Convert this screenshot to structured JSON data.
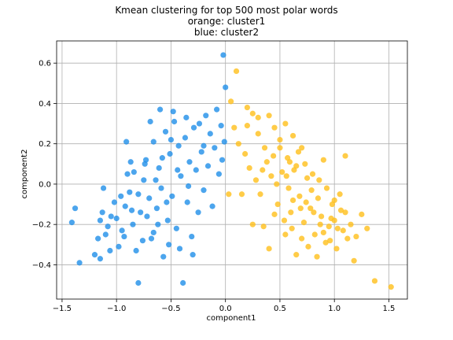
{
  "chart_data": {
    "type": "scatter",
    "title_lines": [
      "Kmean clustering for top 500 most polar words",
      "orange: cluster1",
      "blue: cluster2"
    ],
    "xlabel": "component1",
    "ylabel": "component2",
    "xlim": [
      -1.55,
      1.67
    ],
    "ylim": [
      -0.57,
      0.71
    ],
    "xticks": [
      -1.5,
      -1.0,
      -0.5,
      0.0,
      0.5,
      1.0,
      1.5
    ],
    "xtick_labels": [
      "−1.5",
      "−1.0",
      "−0.5",
      "0.0",
      "0.5",
      "1.0",
      "1.5"
    ],
    "yticks": [
      -0.4,
      -0.2,
      0.0,
      0.2,
      0.4,
      0.6
    ],
    "ytick_labels": [
      "−0.4",
      "−0.2",
      "0.0",
      "0.2",
      "0.4",
      "0.6"
    ],
    "grid": true,
    "series": [
      {
        "color": "#1f8ee8",
        "points": [
          [
            -1.41,
            -0.19
          ],
          [
            -1.38,
            -0.12
          ],
          [
            -1.34,
            -0.39
          ],
          [
            -1.2,
            -0.35
          ],
          [
            -1.15,
            -0.37
          ],
          [
            -1.17,
            -0.27
          ],
          [
            -1.15,
            -0.18
          ],
          [
            -1.13,
            -0.14
          ],
          [
            -1.1,
            -0.25
          ],
          [
            -1.08,
            -0.21
          ],
          [
            -1.05,
            -0.16
          ],
          [
            -1.02,
            -0.09
          ],
          [
            -0.98,
            -0.31
          ],
          [
            -0.95,
            -0.23
          ],
          [
            -0.92,
            -0.11
          ],
          [
            -0.9,
            0.05
          ],
          [
            -0.88,
            -0.04
          ],
          [
            -0.85,
            -0.2
          ],
          [
            -0.82,
            -0.33
          ],
          [
            -0.8,
            -0.49
          ],
          [
            -0.78,
            -0.14
          ],
          [
            -0.75,
            0.02
          ],
          [
            -0.73,
            0.12
          ],
          [
            -0.7,
            -0.07
          ],
          [
            -0.68,
            -0.27
          ],
          [
            -0.66,
            0.21
          ],
          [
            -0.63,
            -0.12
          ],
          [
            -0.61,
            0.08
          ],
          [
            -0.59,
            -0.02
          ],
          [
            -0.57,
            -0.36
          ],
          [
            -0.55,
            0.26
          ],
          [
            -0.53,
            -0.18
          ],
          [
            -0.51,
            0.15
          ],
          [
            -0.49,
            -0.06
          ],
          [
            -0.47,
            0.31
          ],
          [
            -0.45,
            -0.22
          ],
          [
            -0.43,
            0.19
          ],
          [
            -0.41,
            0.04
          ],
          [
            -0.39,
            -0.49
          ],
          [
            -0.37,
            0.23
          ],
          [
            -0.35,
            -0.09
          ],
          [
            -0.33,
            0.11
          ],
          [
            -0.31,
            -0.26
          ],
          [
            -0.29,
            0.28
          ],
          [
            -0.27,
            0.07
          ],
          [
            -0.25,
            -0.14
          ],
          [
            -0.22,
            0.16
          ],
          [
            -0.2,
            -0.03
          ],
          [
            -0.18,
            0.34
          ],
          [
            -0.16,
            0.09
          ],
          [
            -0.14,
            0.25
          ],
          [
            -0.12,
            -0.11
          ],
          [
            -0.1,
            0.18
          ],
          [
            -0.08,
            0.37
          ],
          [
            -0.06,
            0.05
          ],
          [
            -0.04,
            0.29
          ],
          [
            -0.02,
            0.64
          ],
          [
            0.0,
            0.48
          ],
          [
            -0.01,
            0.21
          ],
          [
            -0.03,
            0.12
          ],
          [
            -0.91,
            0.21
          ],
          [
            -1.0,
            -0.17
          ],
          [
            -0.96,
            -0.06
          ],
          [
            -1.12,
            -0.02
          ],
          [
            -0.84,
            0.06
          ],
          [
            -0.76,
            -0.28
          ],
          [
            -0.66,
            -0.24
          ],
          [
            -0.6,
            0.37
          ],
          [
            -0.48,
            0.36
          ],
          [
            -0.42,
            -0.32
          ],
          [
            -0.36,
            0.33
          ],
          [
            -0.24,
            0.3
          ],
          [
            -0.2,
            0.19
          ],
          [
            -0.3,
            -0.35
          ],
          [
            -0.52,
            -0.3
          ],
          [
            -0.69,
            0.31
          ],
          [
            -0.72,
            -0.16
          ],
          [
            -0.87,
            0.11
          ],
          [
            -0.93,
            -0.26
          ],
          [
            -1.06,
            -0.33
          ],
          [
            -0.58,
            0.13
          ],
          [
            -0.44,
            0.07
          ],
          [
            -0.34,
            -0.01
          ],
          [
            -0.54,
            -0.09
          ],
          [
            -0.64,
            0.02
          ],
          [
            -0.74,
            0.1
          ],
          [
            -0.8,
            -0.05
          ],
          [
            -0.86,
            -0.13
          ],
          [
            -0.62,
            -0.2
          ],
          [
            -0.5,
            0.22
          ]
        ]
      },
      {
        "color": "#ffbf1a",
        "points": [
          [
            0.1,
            0.56
          ],
          [
            0.05,
            0.41
          ],
          [
            0.2,
            0.38
          ],
          [
            0.25,
            0.35
          ],
          [
            0.3,
            0.33
          ],
          [
            0.4,
            0.34
          ],
          [
            0.45,
            0.28
          ],
          [
            0.55,
            0.3
          ],
          [
            0.62,
            0.24
          ],
          [
            0.7,
            0.18
          ],
          [
            0.08,
            0.28
          ],
          [
            0.12,
            0.2
          ],
          [
            0.18,
            0.15
          ],
          [
            0.22,
            0.08
          ],
          [
            0.28,
            0.02
          ],
          [
            0.32,
            -0.05
          ],
          [
            0.38,
            0.11
          ],
          [
            0.42,
            0.04
          ],
          [
            0.48,
            -0.1
          ],
          [
            0.52,
            0.06
          ],
          [
            0.58,
            -0.02
          ],
          [
            0.6,
            -0.14
          ],
          [
            0.65,
            0.09
          ],
          [
            0.68,
            -0.06
          ],
          [
            0.72,
            -0.19
          ],
          [
            0.75,
            0.03
          ],
          [
            0.78,
            -0.12
          ],
          [
            0.82,
            -0.25
          ],
          [
            0.85,
            -0.07
          ],
          [
            0.88,
            -0.16
          ],
          [
            0.9,
            0.12
          ],
          [
            0.92,
            -0.29
          ],
          [
            0.95,
            -0.21
          ],
          [
            0.98,
            -0.1
          ],
          [
            1.0,
            -0.18
          ],
          [
            1.02,
            -0.32
          ],
          [
            1.05,
            -0.05
          ],
          [
            1.08,
            -0.23
          ],
          [
            1.1,
            -0.14
          ],
          [
            1.12,
            -0.27
          ],
          [
            1.15,
            -0.2
          ],
          [
            1.18,
            -0.38
          ],
          [
            1.2,
            -0.26
          ],
          [
            1.25,
            -0.15
          ],
          [
            1.3,
            -0.22
          ],
          [
            1.37,
            -0.48
          ],
          [
            1.52,
            -0.51
          ],
          [
            1.1,
            0.14
          ],
          [
            0.03,
            -0.05
          ],
          [
            0.15,
            -0.05
          ],
          [
            0.25,
            -0.2
          ],
          [
            0.35,
            -0.21
          ],
          [
            0.4,
            -0.32
          ],
          [
            0.5,
            0.18
          ],
          [
            0.55,
            -0.25
          ],
          [
            0.65,
            -0.35
          ],
          [
            0.7,
            -0.27
          ],
          [
            0.76,
            -0.31
          ],
          [
            0.84,
            -0.36
          ],
          [
            0.96,
            -0.28
          ],
          [
            0.2,
            0.29
          ],
          [
            0.3,
            0.25
          ],
          [
            0.36,
            0.18
          ],
          [
            0.44,
            0.14
          ],
          [
            0.5,
            0.22
          ],
          [
            0.57,
            0.13
          ],
          [
            0.63,
            0.07
          ],
          [
            0.67,
            0.16
          ],
          [
            0.73,
            0.1
          ],
          [
            0.8,
            0.05
          ],
          [
            0.86,
            0.02
          ],
          [
            0.93,
            -0.02
          ],
          [
            1.0,
            -0.08
          ],
          [
            1.06,
            -0.13
          ],
          [
            0.45,
            -0.15
          ],
          [
            0.54,
            -0.18
          ],
          [
            0.61,
            -0.22
          ],
          [
            0.69,
            -0.12
          ],
          [
            0.79,
            -0.03
          ],
          [
            0.87,
            -0.2
          ],
          [
            0.34,
            0.07
          ],
          [
            0.47,
            0.0
          ],
          [
            0.56,
            0.04
          ],
          [
            0.62,
            -0.08
          ],
          [
            0.74,
            -0.09
          ],
          [
            0.81,
            -0.14
          ],
          [
            0.9,
            -0.24
          ],
          [
            0.97,
            -0.17
          ],
          [
            1.03,
            -0.22
          ],
          [
            0.59,
            0.11
          ]
        ]
      }
    ]
  }
}
